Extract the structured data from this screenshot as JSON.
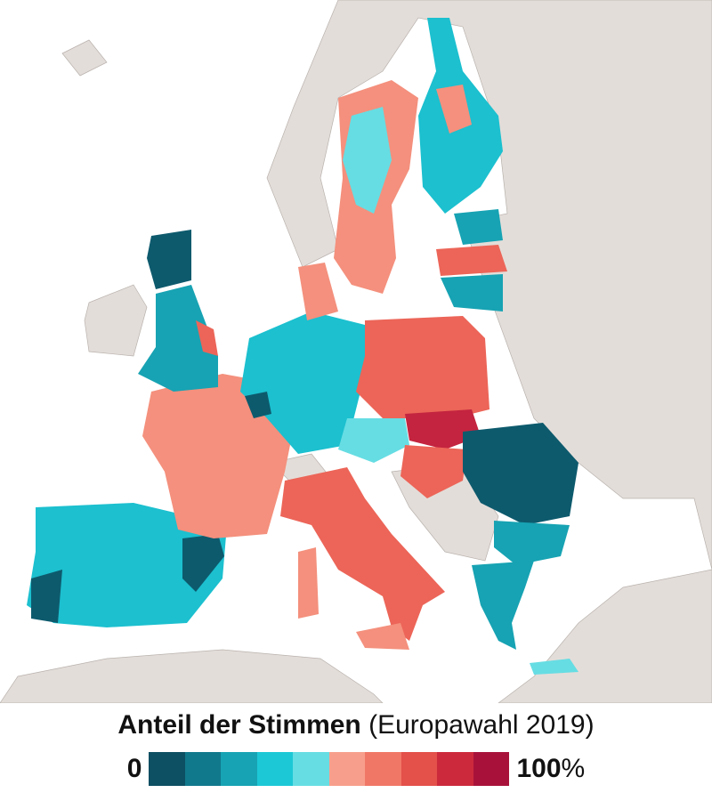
{
  "title": {
    "bold": "Anteil der Stimmen",
    "rest": "(Europawahl 2019)"
  },
  "legend": {
    "min": 0,
    "max": 100,
    "unit": "%",
    "colors": [
      "#0d4f63",
      "#11798c",
      "#17a3b3",
      "#1cc8d6",
      "#66dde3",
      "#f79f8c",
      "#f07766",
      "#e4504a",
      "#cc2a3c",
      "#a8123a"
    ]
  }
}
